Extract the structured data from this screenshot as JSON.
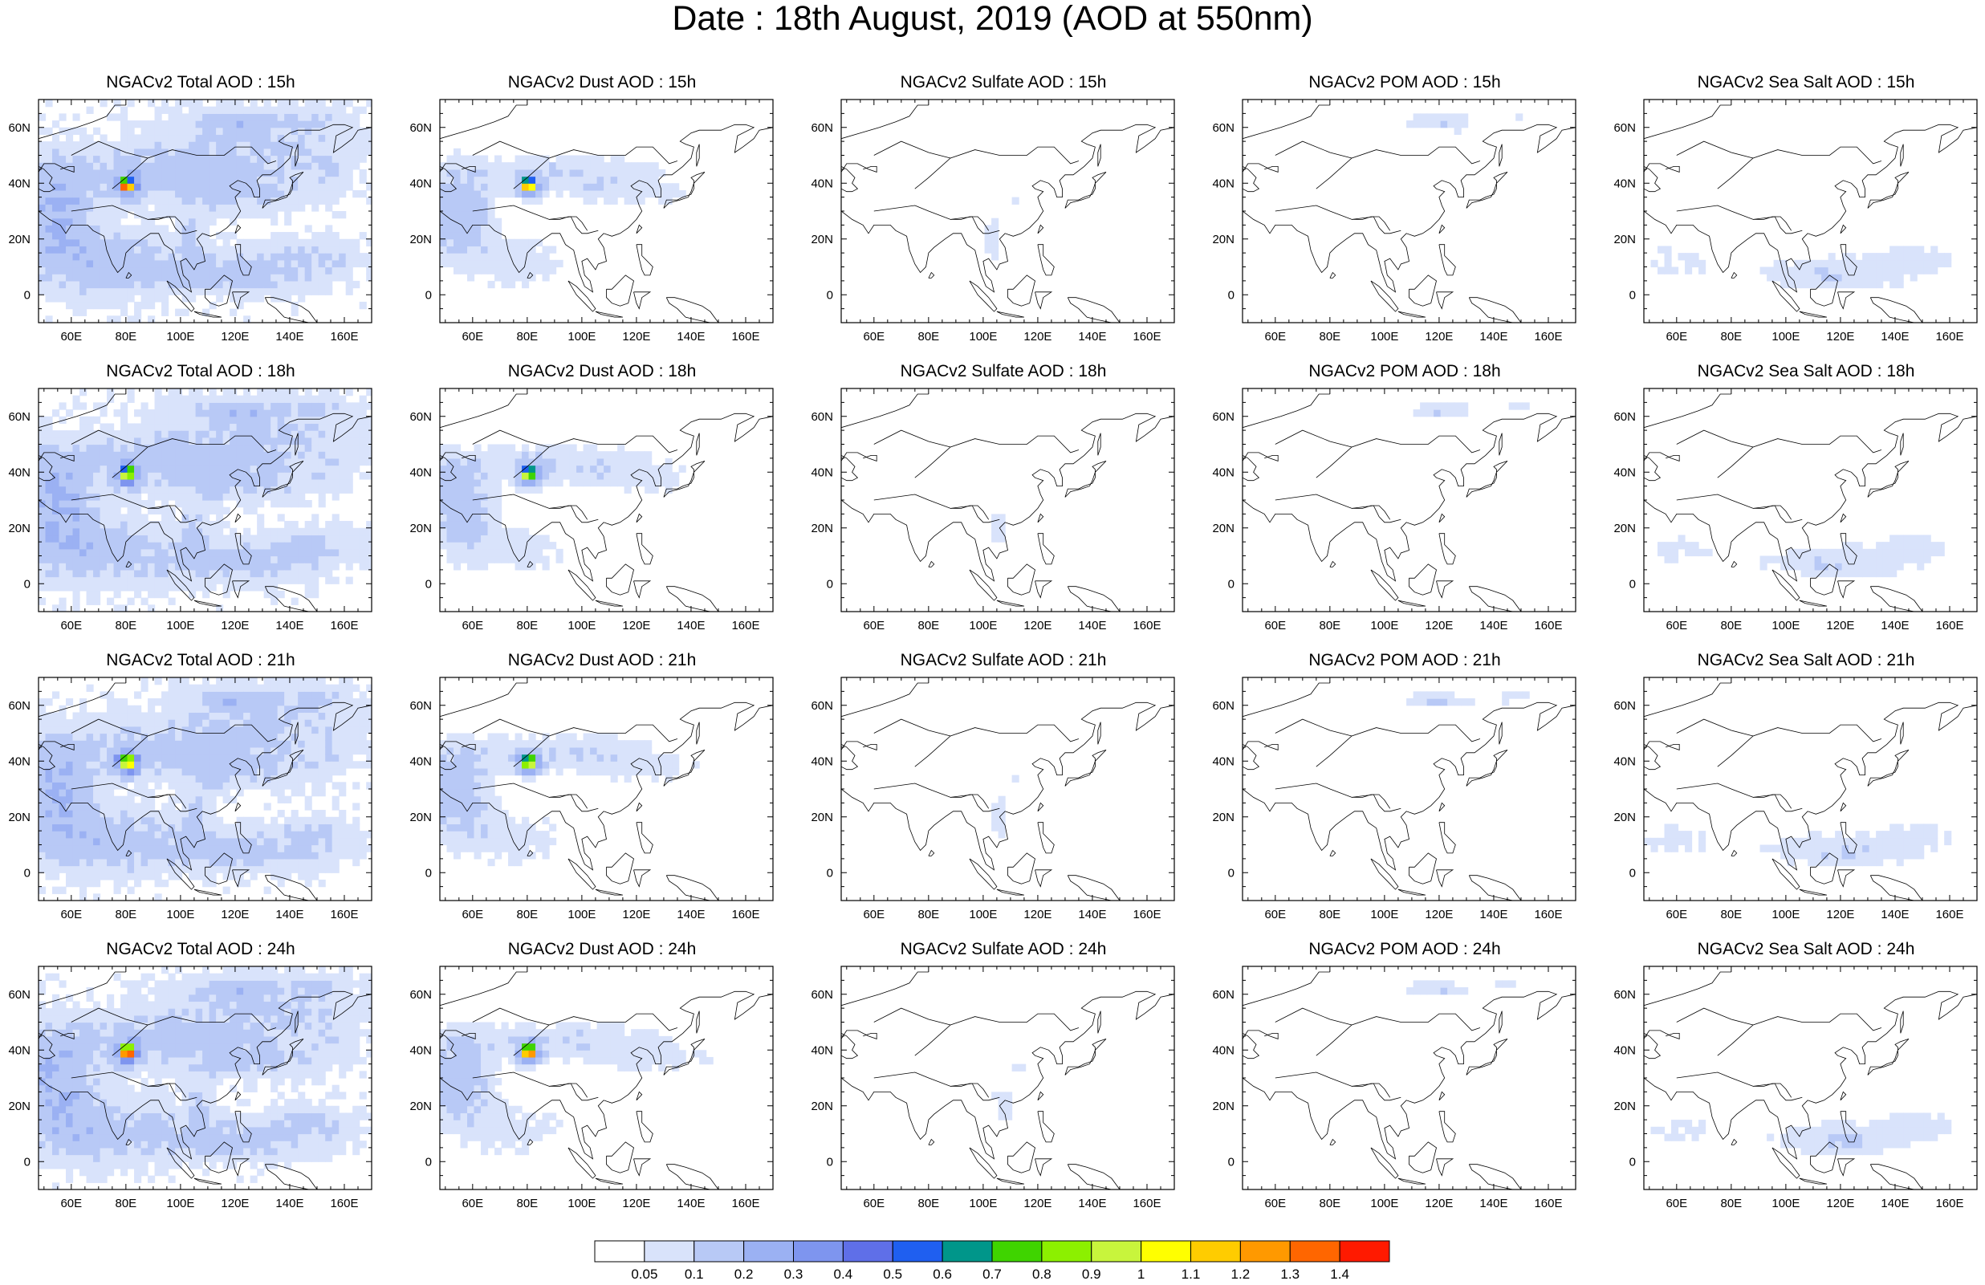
{
  "title": "Date : 18th August, 2019 (AOD at 550nm)",
  "map": {
    "lon_range": [
      48,
      170
    ],
    "lat_range": [
      -10,
      70
    ],
    "lon_ticks": [
      60,
      80,
      100,
      120,
      140,
      160
    ],
    "lon_tick_labels": [
      "60E",
      "80E",
      "100E",
      "120E",
      "140E",
      "160E"
    ],
    "lat_ticks": [
      0,
      20,
      40,
      60
    ],
    "lat_tick_labels": [
      "0",
      "20N",
      "40N",
      "60N"
    ]
  },
  "panels": [
    {
      "title": "NGACv2 Total AOD : 15h",
      "variable": "total"
    },
    {
      "title": "NGACv2 Dust AOD : 15h",
      "variable": "dust"
    },
    {
      "title": "NGACv2 Sulfate AOD : 15h",
      "variable": "sulfate"
    },
    {
      "title": "NGACv2 POM AOD : 15h",
      "variable": "pom"
    },
    {
      "title": "NGACv2 Sea Salt AOD : 15h",
      "variable": "seasalt"
    },
    {
      "title": "NGACv2 Total AOD : 18h",
      "variable": "total"
    },
    {
      "title": "NGACv2 Dust AOD : 18h",
      "variable": "dust"
    },
    {
      "title": "NGACv2 Sulfate AOD : 18h",
      "variable": "sulfate"
    },
    {
      "title": "NGACv2 POM AOD : 18h",
      "variable": "pom"
    },
    {
      "title": "NGACv2 Sea Salt AOD : 18h",
      "variable": "seasalt"
    },
    {
      "title": "NGACv2 Total AOD : 21h",
      "variable": "total"
    },
    {
      "title": "NGACv2 Dust AOD : 21h",
      "variable": "dust"
    },
    {
      "title": "NGACv2 Sulfate AOD : 21h",
      "variable": "sulfate"
    },
    {
      "title": "NGACv2 POM AOD : 21h",
      "variable": "pom"
    },
    {
      "title": "NGACv2 Sea Salt AOD : 21h",
      "variable": "seasalt"
    },
    {
      "title": "NGACv2 Total AOD : 24h",
      "variable": "total"
    },
    {
      "title": "NGACv2 Dust AOD : 24h",
      "variable": "dust"
    },
    {
      "title": "NGACv2 Sulfate AOD : 24h",
      "variable": "sulfate"
    },
    {
      "title": "NGACv2 POM AOD : 24h",
      "variable": "pom"
    },
    {
      "title": "NGACv2 Sea Salt  AOD : 24h",
      "variable": "seasalt"
    }
  ],
  "colorbar": {
    "labels": [
      "0.05",
      "0.1",
      "0.2",
      "0.3",
      "0.4",
      "0.5",
      "0.6",
      "0.7",
      "0.8",
      "0.9",
      "1",
      "1.1",
      "1.2",
      "1.3",
      "1.4"
    ],
    "colors": [
      "#ffffff",
      "#d9e3fb",
      "#b8c9f6",
      "#9bb1f3",
      "#7e95ef",
      "#5f6fe8",
      "#1f5ff0",
      "#00968a",
      "#3fd400",
      "#8cf000",
      "#c8f53c",
      "#ffff00",
      "#ffcc00",
      "#ff9900",
      "#ff6600",
      "#ff1a00"
    ]
  }
}
